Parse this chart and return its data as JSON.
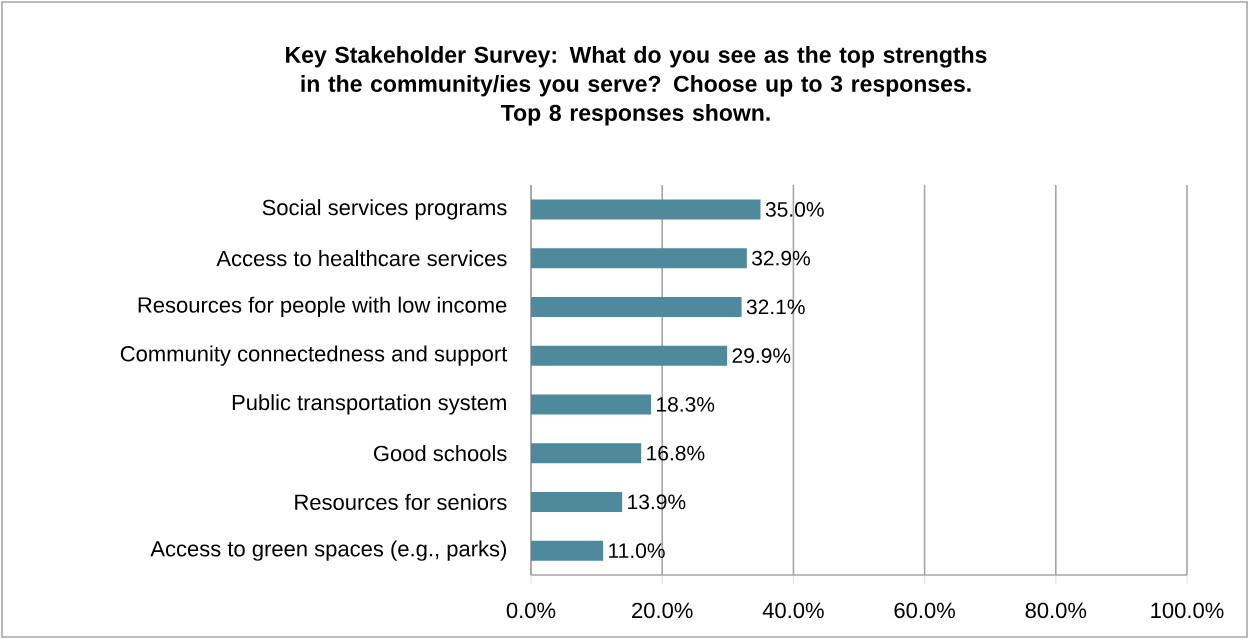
{
  "chart_data": {
    "type": "bar",
    "orientation": "horizontal",
    "title": "Key Stakeholder Survey: What do you see as the top strengths in the community/ies you serve? Choose up to 3 responses.",
    "subtitle": "Top 8 responses shown.",
    "categories": [
      "Social services programs",
      "Access to healthcare services",
      "Resources for people with low income",
      "Community connectedness and support",
      "Public transportation system",
      "Good schools",
      "Resources for seniors",
      "Access to green spaces (e.g., parks)"
    ],
    "values": [
      35.0,
      32.9,
      32.1,
      29.9,
      18.3,
      16.8,
      13.9,
      11.0
    ],
    "value_labels": [
      "35.0%",
      "32.9%",
      "32.1%",
      "29.9%",
      "18.3%",
      "16.8%",
      "13.9%",
      "11.0%"
    ],
    "color": "#4f8a9c",
    "grid": "x",
    "xlim": [
      0,
      100
    ],
    "xticks": [
      {
        "value": 0,
        "label": "0.0%"
      },
      {
        "value": 20,
        "label": "20.0%"
      },
      {
        "value": 40,
        "label": "40.0%"
      },
      {
        "value": 60,
        "label": "60.0%"
      },
      {
        "value": 80,
        "label": "80.0%"
      },
      {
        "value": 100,
        "label": "100.0%"
      }
    ]
  }
}
